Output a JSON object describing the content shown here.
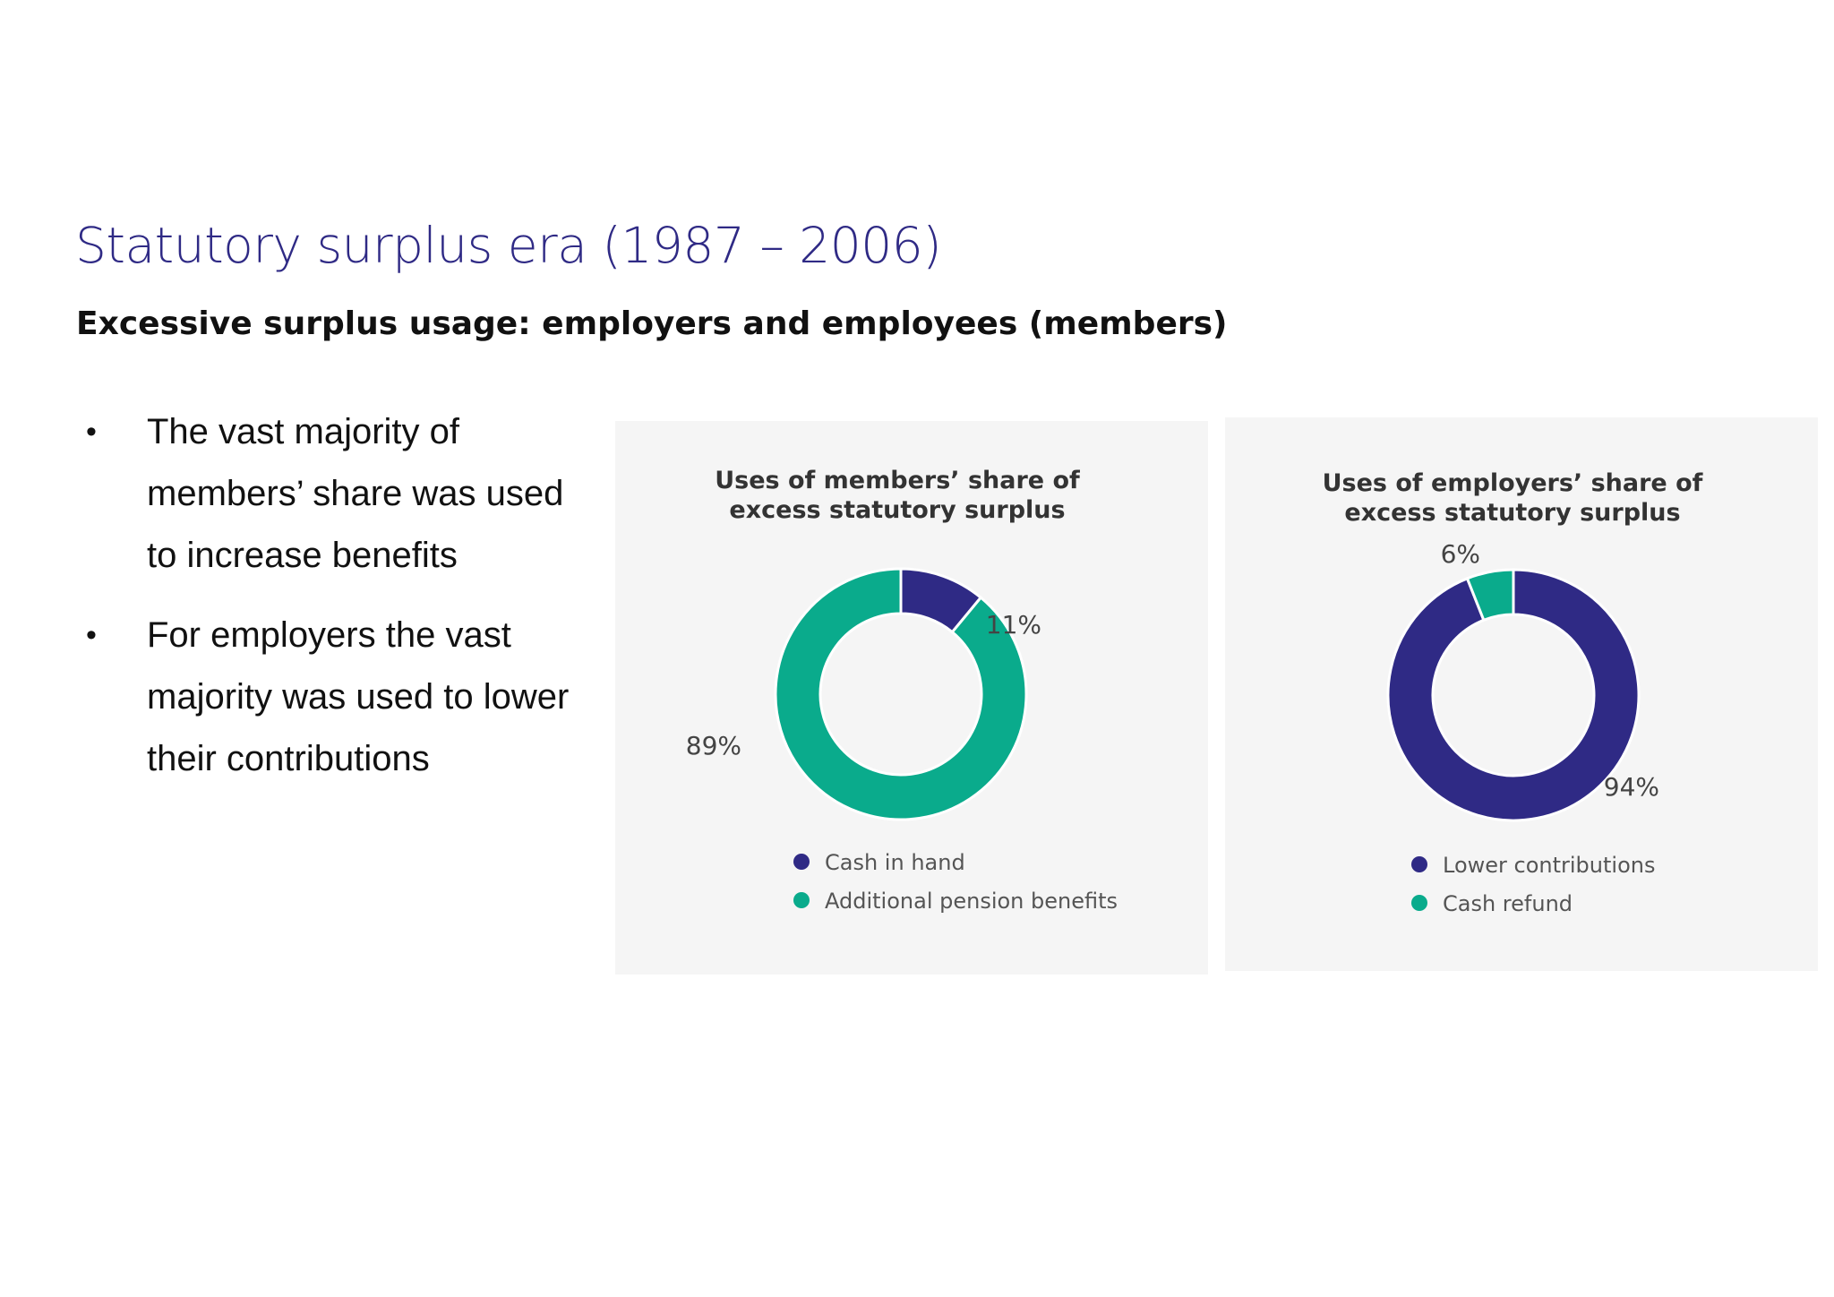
{
  "slide": {
    "title": "Statutory surplus era (1987 – 2006)",
    "subtitle": "Excessive surplus usage: employers and employees (members)",
    "bullets": [
      "The vast majority of members’ share was used to increase benefits",
      "For employers the vast majority was used to lower their contributions"
    ]
  },
  "colors": {
    "navy": "#2f2a85",
    "teal": "#0aab8c",
    "title": "#2f2a85"
  },
  "chart_data": [
    {
      "type": "pie",
      "donut": true,
      "title": [
        "Uses of members’ share of",
        "excess statutory surplus"
      ],
      "categories": [
        "Cash in hand",
        "Additional pension benefits"
      ],
      "values": [
        11,
        89
      ],
      "labels": [
        "11%",
        "89%"
      ],
      "colors": [
        "#2f2a85",
        "#0aab8c"
      ],
      "legend": "bottom"
    },
    {
      "type": "pie",
      "donut": true,
      "title": [
        "Uses of employers’ share of",
        "excess statutory surplus"
      ],
      "categories": [
        "Lower contributions",
        "Cash refund"
      ],
      "values": [
        94,
        6
      ],
      "labels": [
        "94%",
        "6%"
      ],
      "colors": [
        "#2f2a85",
        "#0aab8c"
      ],
      "legend": "bottom"
    }
  ]
}
